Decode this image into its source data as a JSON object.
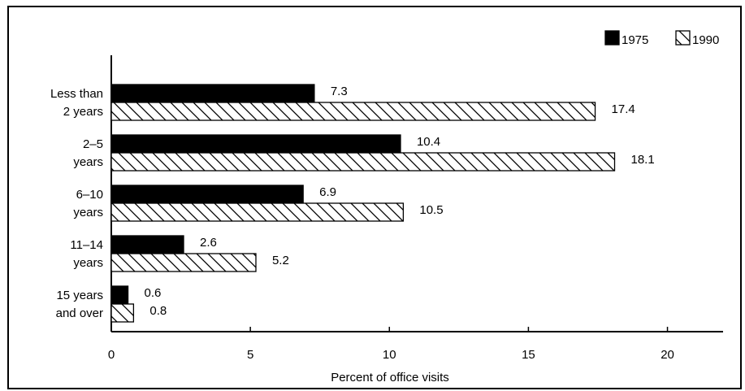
{
  "chart_data": {
    "type": "bar",
    "orientation": "horizontal",
    "x_label": "Percent of office visits",
    "categories": [
      [
        "Less than",
        "2 years"
      ],
      [
        "2–5",
        "years"
      ],
      [
        "6–10",
        "years"
      ],
      [
        "11–14",
        "years"
      ],
      [
        "15 years",
        "and over"
      ]
    ],
    "series": [
      {
        "name": "1975",
        "color": "#000000",
        "pattern": "solid",
        "values": [
          7.3,
          10.4,
          6.9,
          2.6,
          0.6
        ]
      },
      {
        "name": "1990",
        "color": "#000000",
        "pattern": "hatch",
        "values": [
          17.4,
          18.1,
          10.5,
          5.2,
          0.8
        ]
      }
    ],
    "xlim": [
      0,
      22
    ],
    "xticks": [
      0,
      5,
      10,
      15,
      20
    ],
    "legend": "top-right"
  }
}
